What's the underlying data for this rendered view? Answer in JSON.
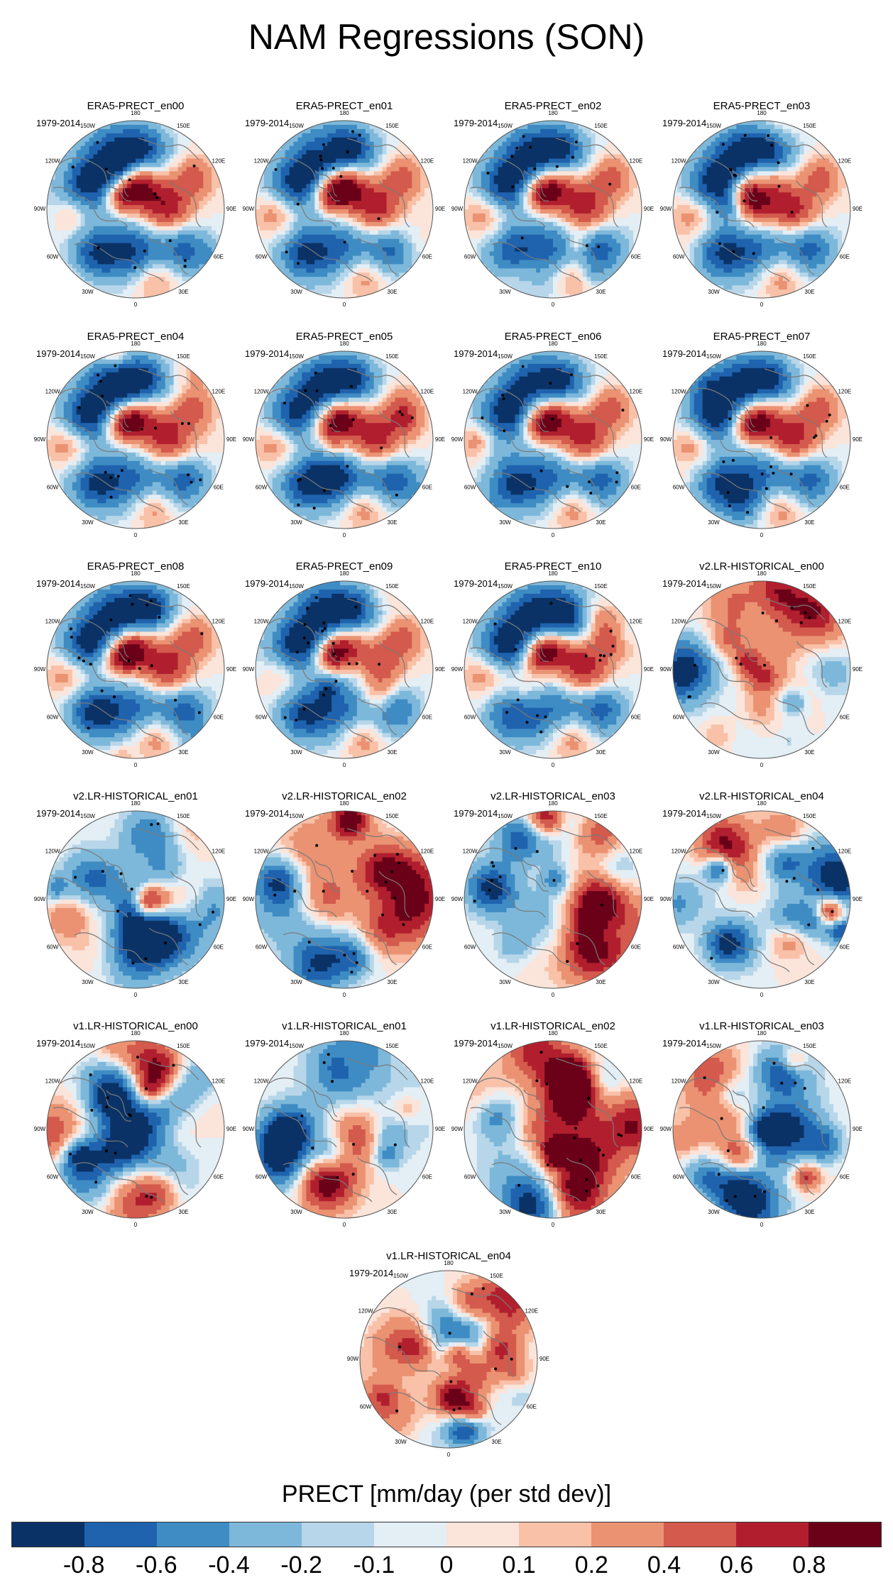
{
  "figure": {
    "title": "NAM Regressions (SON)",
    "period_label": "1979-2014",
    "longitude_labels": [
      "180",
      "150E",
      "120E",
      "90E",
      "60E",
      "30E",
      "0",
      "30W",
      "60W",
      "90W",
      "120W",
      "150W"
    ]
  },
  "panels": [
    {
      "title": "ERA5-PRECT_en00",
      "source": "ERA5",
      "pattern_seed": 1
    },
    {
      "title": "ERA5-PRECT_en01",
      "source": "ERA5",
      "pattern_seed": 2
    },
    {
      "title": "ERA5-PRECT_en02",
      "source": "ERA5",
      "pattern_seed": 3
    },
    {
      "title": "ERA5-PRECT_en03",
      "source": "ERA5",
      "pattern_seed": 4
    },
    {
      "title": "ERA5-PRECT_en04",
      "source": "ERA5",
      "pattern_seed": 5
    },
    {
      "title": "ERA5-PRECT_en05",
      "source": "ERA5",
      "pattern_seed": 6
    },
    {
      "title": "ERA5-PRECT_en06",
      "source": "ERA5",
      "pattern_seed": 7
    },
    {
      "title": "ERA5-PRECT_en07",
      "source": "ERA5",
      "pattern_seed": 8
    },
    {
      "title": "ERA5-PRECT_en08",
      "source": "ERA5",
      "pattern_seed": 9
    },
    {
      "title": "ERA5-PRECT_en09",
      "source": "ERA5",
      "pattern_seed": 10
    },
    {
      "title": "ERA5-PRECT_en10",
      "source": "ERA5",
      "pattern_seed": 11
    },
    {
      "title": "v2.LR-HISTORICAL_en00",
      "source": "v2",
      "pattern_seed": 21
    },
    {
      "title": "v2.LR-HISTORICAL_en01",
      "source": "v2",
      "pattern_seed": 22
    },
    {
      "title": "v2.LR-HISTORICAL_en02",
      "source": "v2",
      "pattern_seed": 23
    },
    {
      "title": "v2.LR-HISTORICAL_en03",
      "source": "v2",
      "pattern_seed": 24
    },
    {
      "title": "v2.LR-HISTORICAL_en04",
      "source": "v2",
      "pattern_seed": 25
    },
    {
      "title": "v1.LR-HISTORICAL_en00",
      "source": "v1",
      "pattern_seed": 31
    },
    {
      "title": "v1.LR-HISTORICAL_en01",
      "source": "v1",
      "pattern_seed": 32
    },
    {
      "title": "v1.LR-HISTORICAL_en02",
      "source": "v1",
      "pattern_seed": 33
    },
    {
      "title": "v1.LR-HISTORICAL_en03",
      "source": "v1",
      "pattern_seed": 34
    },
    {
      "title": "v1.LR-HISTORICAL_en04",
      "source": "v1",
      "pattern_seed": 35
    }
  ],
  "colorbar": {
    "title": "PRECT [mm/day (per std dev)]",
    "colors": [
      "#0a3266",
      "#1f63ae",
      "#3f8cc4",
      "#7db8da",
      "#b7d6e9",
      "#e3eef5",
      "#fbe4da",
      "#f8c1a8",
      "#ea9272",
      "#d35a4c",
      "#b11f2e",
      "#6b0119"
    ],
    "tick_labels": [
      "-0.8",
      "-0.6",
      "-0.4",
      "-0.2",
      "-0.1",
      "0",
      "0.1",
      "0.2",
      "0.4",
      "0.6",
      "0.8"
    ]
  },
  "style": {
    "coastline_color": "#7a7a7a",
    "stipple_color": "#000000"
  }
}
